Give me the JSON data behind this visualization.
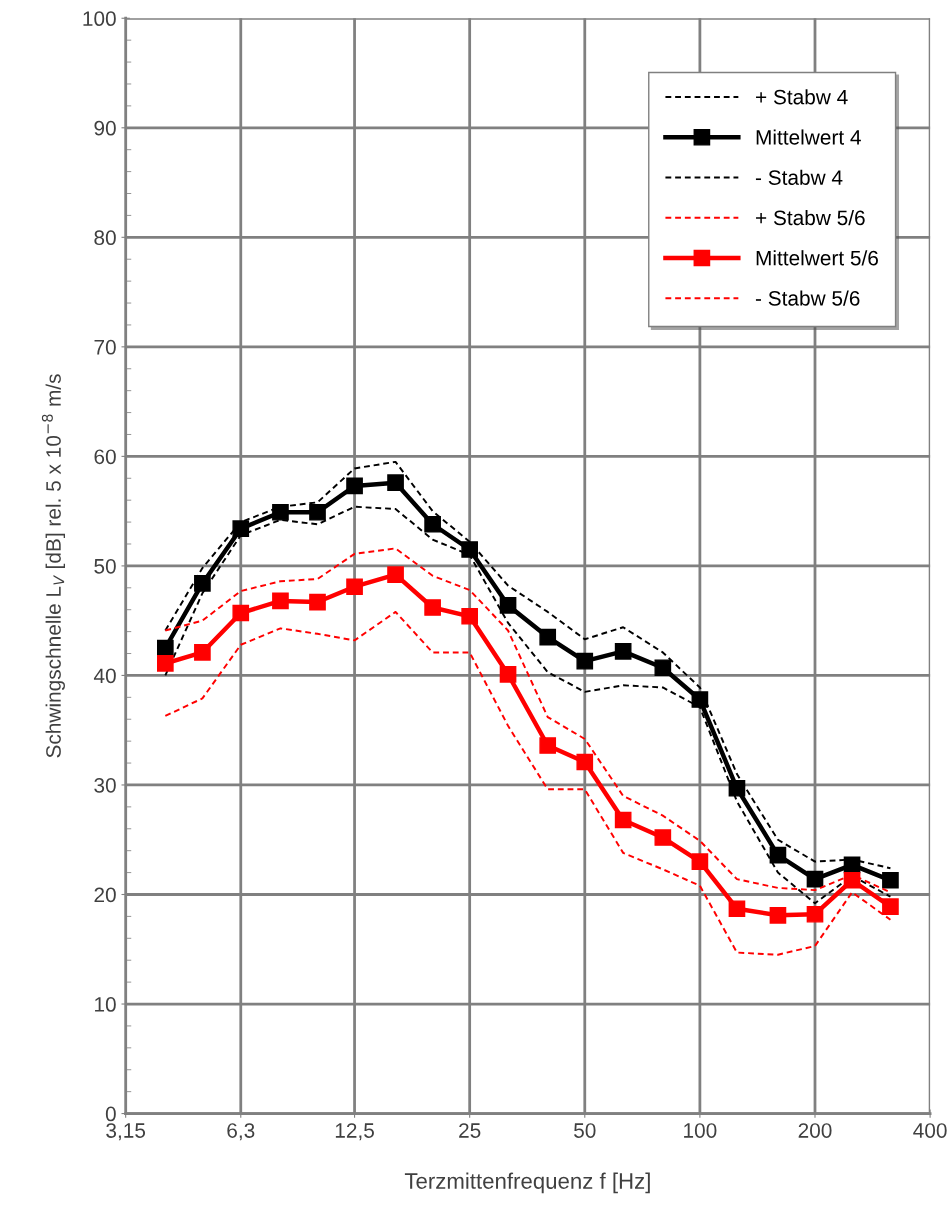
{
  "chart_data": {
    "type": "line",
    "xlabel": "Terzmittenfrequenz f [Hz]",
    "ylabel": "Schwingschnelle L$_{V}$ [dB] rel. 5 x 10$^{−8}$ m/s",
    "x": [
      4,
      5,
      6.3,
      8,
      10,
      12.5,
      16,
      20,
      25,
      31.5,
      40,
      50,
      63,
      80,
      100,
      125,
      160,
      200,
      250,
      315
    ],
    "log": "x",
    "xlim": [
      3.15,
      400
    ],
    "xticks": [
      {
        "value": 3.15,
        "label": "3,15"
      },
      {
        "value": 6.3,
        "label": "6,3"
      },
      {
        "value": 12.5,
        "label": "12,5"
      },
      25,
      50,
      100,
      200,
      400
    ],
    "ylim": [
      0,
      100
    ],
    "yticks": [
      0,
      10,
      20,
      30,
      40,
      50,
      60,
      70,
      80,
      90,
      100
    ],
    "grid": true,
    "legend": "top right",
    "series": [
      {
        "name": "+ Stabw 4",
        "color": "#000000",
        "line_style": "dashed",
        "marker": "none",
        "values": [
          44.1,
          49.8,
          54.0,
          55.4,
          55.8,
          58.9,
          59.5,
          55.0,
          52.2,
          48.2,
          45.8,
          43.3,
          44.4,
          42.1,
          38.9,
          31.0,
          25.0,
          23.0,
          23.2,
          22.4
        ]
      },
      {
        "name": "Mittelwert 4",
        "color": "#000000",
        "line_style": "solid",
        "marker": "square",
        "values": [
          42.5,
          48.4,
          53.4,
          54.9,
          54.9,
          57.3,
          57.6,
          53.8,
          51.5,
          46.4,
          43.5,
          41.3,
          42.2,
          40.7,
          37.8,
          29.7,
          23.6,
          21.4,
          22.7,
          21.3
        ]
      },
      {
        "name": "- Stabw 4",
        "color": "#000000",
        "line_style": "dashed",
        "marker": "none",
        "values": [
          40.0,
          47.5,
          52.8,
          54.2,
          53.8,
          55.4,
          55.2,
          52.4,
          51.0,
          44.8,
          40.3,
          38.5,
          39.1,
          38.9,
          37.1,
          28.5,
          22.0,
          19.2,
          21.7,
          19.8
        ]
      },
      {
        "name": "+ Stabw 5/6",
        "color": "#ff0000",
        "line_style": "dashed",
        "marker": "none",
        "values": [
          44.1,
          45.0,
          47.7,
          48.6,
          48.8,
          51.1,
          51.6,
          49.1,
          47.8,
          44.1,
          36.2,
          34.2,
          29.0,
          27.2,
          24.9,
          21.4,
          20.6,
          20.4,
          21.8,
          20.2
        ]
      },
      {
        "name": "Mittelwert 5/6",
        "color": "#ff0000",
        "line_style": "solid",
        "marker": "square",
        "values": [
          41.1,
          42.1,
          45.7,
          46.8,
          46.7,
          48.1,
          49.2,
          46.2,
          45.4,
          40.1,
          33.6,
          32.1,
          26.8,
          25.2,
          23.0,
          18.7,
          18.1,
          18.2,
          21.3,
          18.9
        ]
      },
      {
        "name": "- Stabw 5/6",
        "color": "#ff0000",
        "line_style": "dashed",
        "marker": "none",
        "values": [
          36.3,
          37.9,
          42.8,
          44.3,
          43.8,
          43.2,
          45.8,
          42.1,
          42.1,
          35.4,
          29.6,
          29.6,
          23.8,
          22.3,
          20.8,
          14.7,
          14.5,
          15.3,
          20.2,
          17.7
        ]
      }
    ]
  }
}
